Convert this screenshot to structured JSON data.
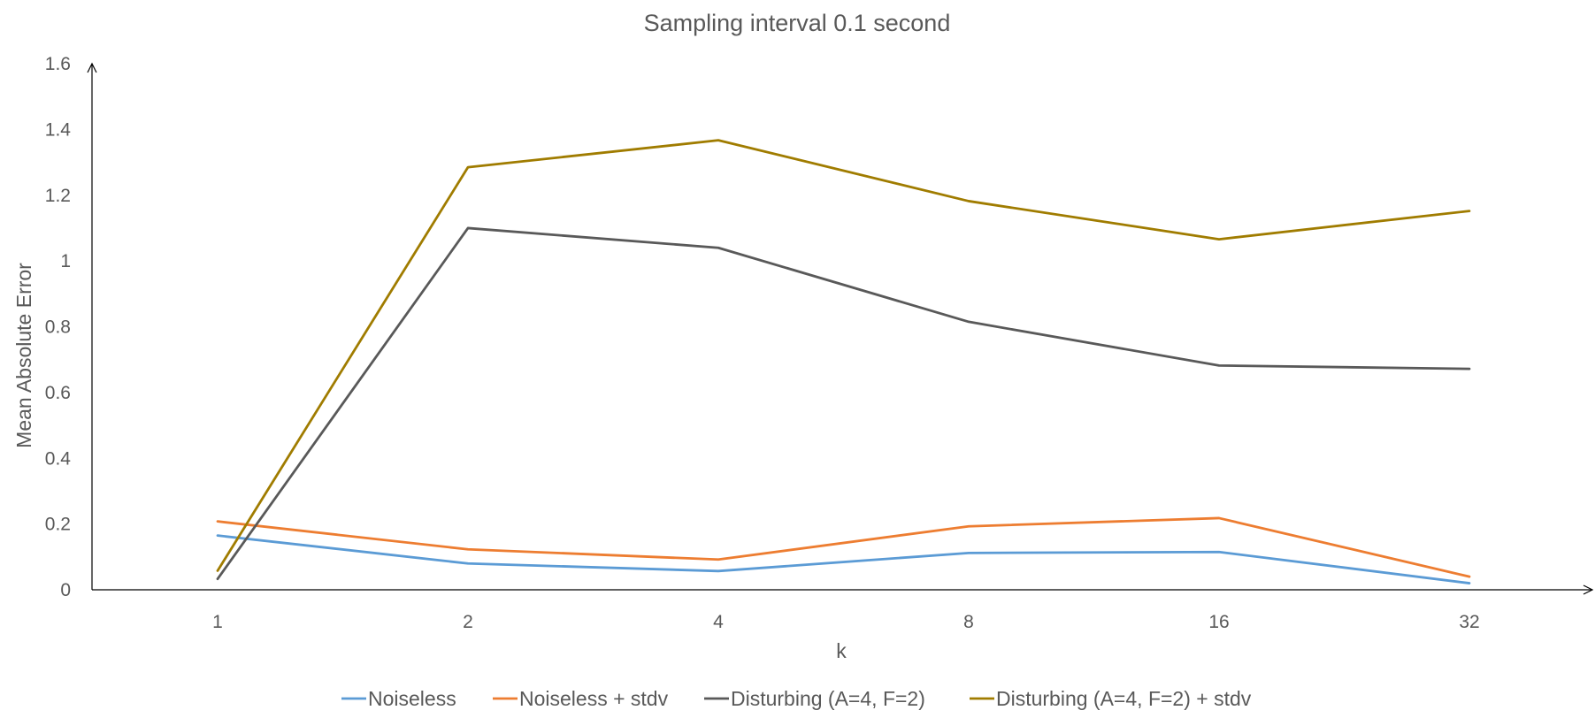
{
  "chart_data": {
    "type": "line",
    "title": "Sampling interval 0.1 second",
    "xlabel": "k",
    "ylabel": "Mean Absolute Error",
    "categories": [
      "1",
      "2",
      "4",
      "8",
      "16",
      "32"
    ],
    "ylim": [
      0,
      1.6
    ],
    "yticks": [
      "0",
      "0.2",
      "0.4",
      "0.6",
      "0.8",
      "1",
      "1.2",
      "1.4",
      "1.6"
    ],
    "grid": false,
    "legend_position": "bottom",
    "series": [
      {
        "name": "Noiseless",
        "color": "#5B9BD5",
        "values": [
          0.165,
          0.08,
          0.057,
          0.112,
          0.115,
          0.02
        ]
      },
      {
        "name": "Noiseless + stdv",
        "color": "#ED7D31",
        "values": [
          0.208,
          0.123,
          0.092,
          0.193,
          0.218,
          0.04
        ]
      },
      {
        "name": "Disturbing (A=4, F=2)",
        "color": "#595959",
        "values": [
          0.033,
          1.1,
          1.04,
          0.815,
          0.682,
          0.672
        ]
      },
      {
        "name": "Disturbing (A=4, F=2) + stdv",
        "color": "#A07C00",
        "values": [
          0.058,
          1.285,
          1.367,
          1.182,
          1.066,
          1.152
        ]
      }
    ]
  }
}
